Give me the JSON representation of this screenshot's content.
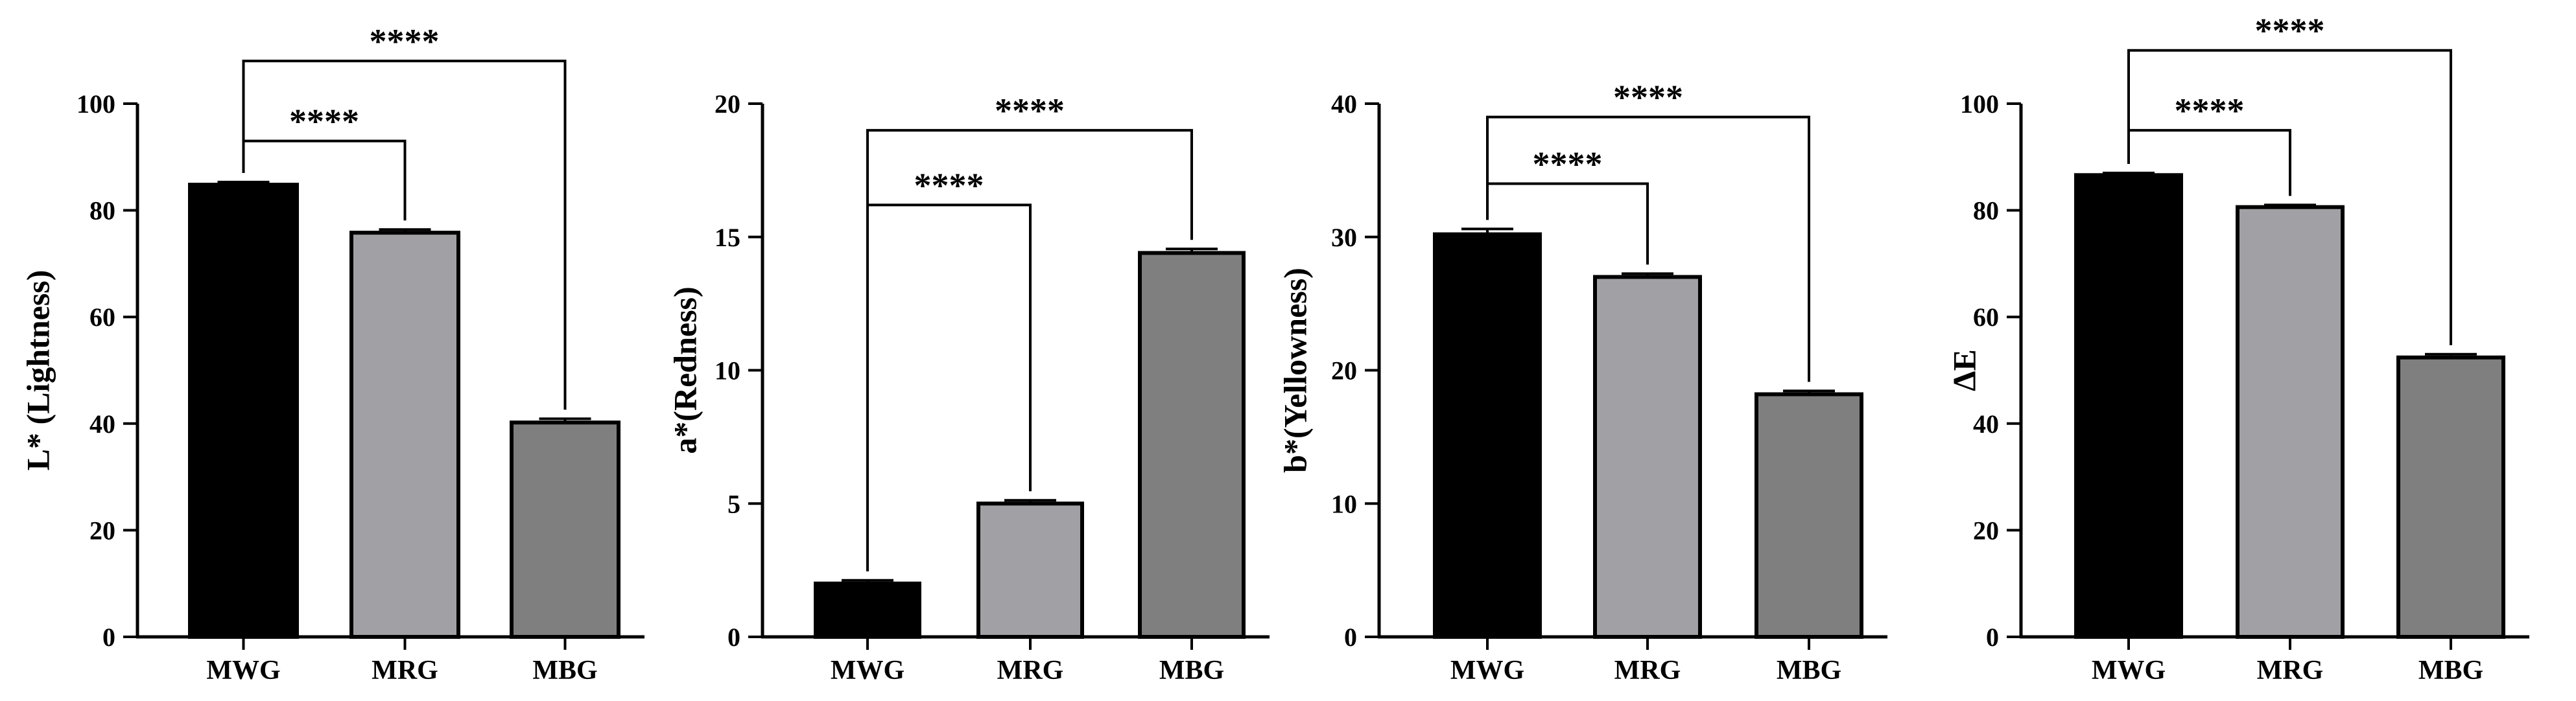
{
  "colors": {
    "MWG": "#000000",
    "MRG": "#a1a0a5",
    "MBG": "#7f7f7f",
    "axis": "#000000"
  },
  "chart_data": [
    {
      "type": "bar",
      "title": "",
      "xlabel": "",
      "ylabel": "L* (Lightness)",
      "categories": [
        "MWG",
        "MRG",
        "MBG"
      ],
      "values": [
        84.8,
        75.8,
        40.2
      ],
      "errors": [
        0.5,
        0.6,
        0.7
      ],
      "ylim": [
        0,
        100
      ],
      "yticks": [
        0,
        20,
        40,
        60,
        80,
        100
      ],
      "significance": [
        {
          "from": 0,
          "to": 1,
          "label": "****",
          "level": 93
        },
        {
          "from": 0,
          "to": 2,
          "label": "****",
          "level": 108
        }
      ]
    },
    {
      "type": "bar",
      "title": "",
      "xlabel": "",
      "ylabel": "a*(Redness)",
      "categories": [
        "MWG",
        "MRG",
        "MBG"
      ],
      "values": [
        2.0,
        5.0,
        14.4
      ],
      "errors": [
        0.12,
        0.12,
        0.15
      ],
      "ylim": [
        0,
        20
      ],
      "yticks": [
        0,
        5,
        10,
        15,
        20
      ],
      "significance": [
        {
          "from": 0,
          "to": 1,
          "label": "****",
          "level": 16.2
        },
        {
          "from": 0,
          "to": 2,
          "label": "****",
          "level": 19.0
        }
      ]
    },
    {
      "type": "bar",
      "title": "",
      "xlabel": "",
      "ylabel": "b*(Yellowness)",
      "categories": [
        "MWG",
        "MRG",
        "MBG"
      ],
      "values": [
        30.2,
        27.0,
        18.2
      ],
      "errors": [
        0.4,
        0.25,
        0.25
      ],
      "ylim": [
        0,
        40
      ],
      "yticks": [
        0,
        10,
        20,
        30,
        40
      ],
      "significance": [
        {
          "from": 0,
          "to": 1,
          "label": "****",
          "level": 34.0
        },
        {
          "from": 0,
          "to": 2,
          "label": "****",
          "level": 39.0
        }
      ]
    },
    {
      "type": "bar",
      "title": "",
      "xlabel": "",
      "ylabel": "ΔE",
      "categories": [
        "MWG",
        "MRG",
        "MBG"
      ],
      "values": [
        86.6,
        80.6,
        52.4
      ],
      "errors": [
        0.4,
        0.4,
        0.6
      ],
      "ylim": [
        0,
        100
      ],
      "yticks": [
        0,
        20,
        40,
        60,
        80,
        100
      ],
      "significance": [
        {
          "from": 0,
          "to": 1,
          "label": "****",
          "level": 95
        },
        {
          "from": 0,
          "to": 2,
          "label": "****",
          "level": 110
        }
      ]
    }
  ]
}
